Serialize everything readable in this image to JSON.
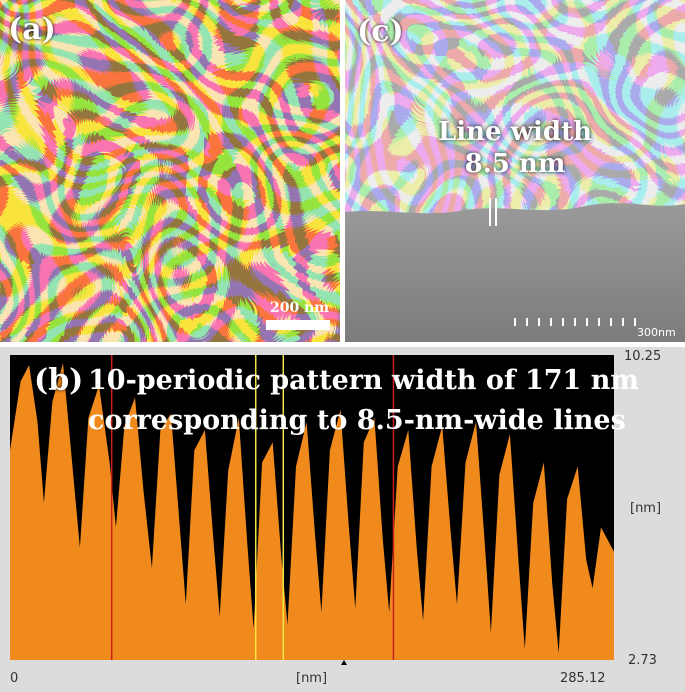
{
  "panel_a": {
    "label": "(a)",
    "scale_bar": "200 nm"
  },
  "panel_c": {
    "label": "(c)",
    "annotation_line1": "Line width",
    "annotation_line2": "8.5 nm",
    "scale_bar": "300nm"
  },
  "panel_b": {
    "label": "(b)",
    "caption_line1": "10-periodic pattern width of 171 nm",
    "caption_line2": "corresponding to 8.5-nm-wide lines",
    "y_max": "10.25",
    "y_min": "2.73",
    "y_unit": "[nm]",
    "x_min": "0",
    "x_max": "285.12",
    "x_unit": "[nm]"
  },
  "colors": {
    "profile_fill": "#f08a1c",
    "background_dark": "#000000",
    "red_marker": "#c8201c",
    "yellow_marker": "#f4e640"
  },
  "chart_data": {
    "type": "area",
    "x_range": [
      0,
      285.12
    ],
    "y_range": [
      2.73,
      10.25
    ],
    "x_unit": "nm",
    "y_unit": "nm",
    "markers_red_x": [
      48,
      181
    ],
    "markers_yellow_x": [
      116,
      129
    ],
    "profile": [
      [
        0,
        7.9
      ],
      [
        5,
        9.6
      ],
      [
        9,
        10.0
      ],
      [
        13,
        8.6
      ],
      [
        16,
        6.6
      ],
      [
        20,
        9.1
      ],
      [
        25,
        10.05
      ],
      [
        30,
        7.2
      ],
      [
        33,
        5.5
      ],
      [
        37,
        8.7
      ],
      [
        42,
        9.5
      ],
      [
        47,
        7.6
      ],
      [
        50,
        6.0
      ],
      [
        54,
        8.5
      ],
      [
        59,
        9.2
      ],
      [
        63,
        6.9
      ],
      [
        67,
        5.0
      ],
      [
        71,
        8.4
      ],
      [
        76,
        8.8
      ],
      [
        80,
        6.1
      ],
      [
        83,
        4.1
      ],
      [
        87,
        7.9
      ],
      [
        92,
        8.4
      ],
      [
        96,
        5.7
      ],
      [
        99,
        3.8
      ],
      [
        103,
        7.4
      ],
      [
        108,
        8.7
      ],
      [
        112,
        5.6
      ],
      [
        115,
        3.5
      ],
      [
        119,
        7.6
      ],
      [
        124,
        8.1
      ],
      [
        128,
        5.3
      ],
      [
        131,
        3.6
      ],
      [
        135,
        7.5
      ],
      [
        140,
        8.6
      ],
      [
        144,
        5.8
      ],
      [
        147,
        3.9
      ],
      [
        151,
        7.9
      ],
      [
        156,
        8.9
      ],
      [
        160,
        6.0
      ],
      [
        163,
        4.0
      ],
      [
        167,
        8.1
      ],
      [
        172,
        8.7
      ],
      [
        176,
        5.7
      ],
      [
        179,
        3.9
      ],
      [
        183,
        7.5
      ],
      [
        188,
        8.4
      ],
      [
        192,
        5.5
      ],
      [
        195,
        3.7
      ],
      [
        199,
        7.5
      ],
      [
        204,
        8.5
      ],
      [
        208,
        5.9
      ],
      [
        211,
        4.1
      ],
      [
        215,
        7.6
      ],
      [
        220,
        8.6
      ],
      [
        224,
        5.7
      ],
      [
        227,
        3.4
      ],
      [
        231,
        7.3
      ],
      [
        236,
        8.3
      ],
      [
        240,
        5.2
      ],
      [
        243,
        3.0
      ],
      [
        247,
        6.6
      ],
      [
        252,
        7.6
      ],
      [
        256,
        4.6
      ],
      [
        259,
        2.9
      ],
      [
        263,
        6.7
      ],
      [
        268,
        7.5
      ],
      [
        272,
        5.2
      ],
      [
        275,
        4.5
      ],
      [
        279,
        6.0
      ],
      [
        285.12,
        5.4
      ]
    ]
  }
}
